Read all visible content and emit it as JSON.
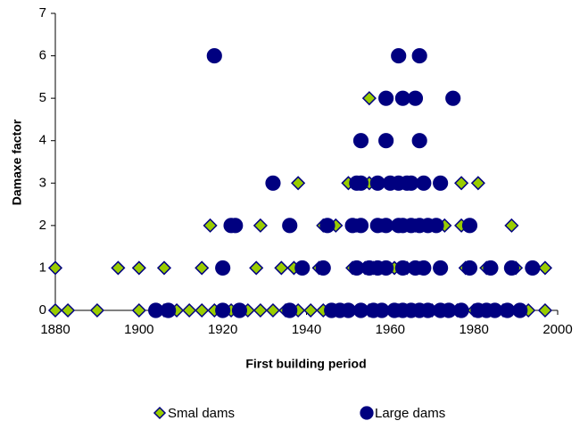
{
  "chart_data": {
    "type": "scatter",
    "xlabel": "First building period",
    "ylabel": "Damaxe factor",
    "xlim": [
      1880,
      2000
    ],
    "xticks": [
      1880,
      1900,
      1920,
      1940,
      1960,
      1980,
      2000
    ],
    "ylim": [
      0,
      7
    ],
    "yticks": [
      0,
      1,
      2,
      3,
      4,
      5,
      6,
      7
    ],
    "legend": "bottom",
    "series": [
      {
        "name": "Smal dams",
        "color": "#99cc00",
        "edgecolor": "#000080",
        "marker": "diamond",
        "x": [
          1955,
          1938,
          1950,
          1955,
          1977,
          1981,
          1917,
          1929,
          1944,
          1947,
          1952,
          1958,
          1966,
          1973,
          1977,
          1989,
          1880,
          1895,
          1900,
          1906,
          1915,
          1928,
          1934,
          1937,
          1943,
          1951,
          1954,
          1956,
          1961,
          1964,
          1967,
          1978,
          1983,
          1990,
          1997,
          1880,
          1883,
          1890,
          1900,
          1906,
          1909,
          1912,
          1915,
          1918,
          1922,
          1926,
          1929,
          1932,
          1935,
          1938,
          1941,
          1944,
          1950,
          1955,
          1962,
          1970,
          1976,
          1980,
          1987,
          1993,
          1997
        ],
        "values": [
          5,
          3,
          3,
          3,
          3,
          3,
          2,
          2,
          2,
          2,
          2,
          2,
          2,
          2,
          2,
          2,
          1,
          1,
          1,
          1,
          1,
          1,
          1,
          1,
          1,
          1,
          1,
          1,
          1,
          1,
          1,
          1,
          1,
          1,
          1,
          0,
          0,
          0,
          0,
          0,
          0,
          0,
          0,
          0,
          0,
          0,
          0,
          0,
          0,
          0,
          0,
          0,
          0,
          0,
          0,
          0,
          0,
          0,
          0,
          0,
          0
        ]
      },
      {
        "name": "Large dams",
        "color": "#000080",
        "edgecolor": "#000080",
        "marker": "circle",
        "x": [
          1918,
          1962,
          1967,
          1959,
          1963,
          1966,
          1975,
          1953,
          1959,
          1967,
          1932,
          1952,
          1953,
          1957,
          1960,
          1962,
          1964,
          1965,
          1968,
          1972,
          1922,
          1923,
          1936,
          1945,
          1951,
          1953,
          1957,
          1959,
          1962,
          1963,
          1965,
          1967,
          1969,
          1971,
          1979,
          1920,
          1939,
          1944,
          1952,
          1955,
          1957,
          1959,
          1963,
          1966,
          1968,
          1972,
          1979,
          1984,
          1989,
          1994,
          1904,
          1907,
          1920,
          1924,
          1936,
          1946,
          1948,
          1950,
          1953,
          1956,
          1958,
          1961,
          1963,
          1965,
          1967,
          1969,
          1972,
          1974,
          1977,
          1981,
          1983,
          1985,
          1988,
          1991
        ],
        "values": [
          6,
          6,
          6,
          5,
          5,
          5,
          5,
          4,
          4,
          4,
          3,
          3,
          3,
          3,
          3,
          3,
          3,
          3,
          3,
          3,
          2,
          2,
          2,
          2,
          2,
          2,
          2,
          2,
          2,
          2,
          2,
          2,
          2,
          2,
          2,
          1,
          1,
          1,
          1,
          1,
          1,
          1,
          1,
          1,
          1,
          1,
          1,
          1,
          1,
          1,
          0,
          0,
          0,
          0,
          0,
          0,
          0,
          0,
          0,
          0,
          0,
          0,
          0,
          0,
          0,
          0,
          0,
          0,
          0,
          0,
          0,
          0,
          0,
          0
        ]
      }
    ]
  }
}
